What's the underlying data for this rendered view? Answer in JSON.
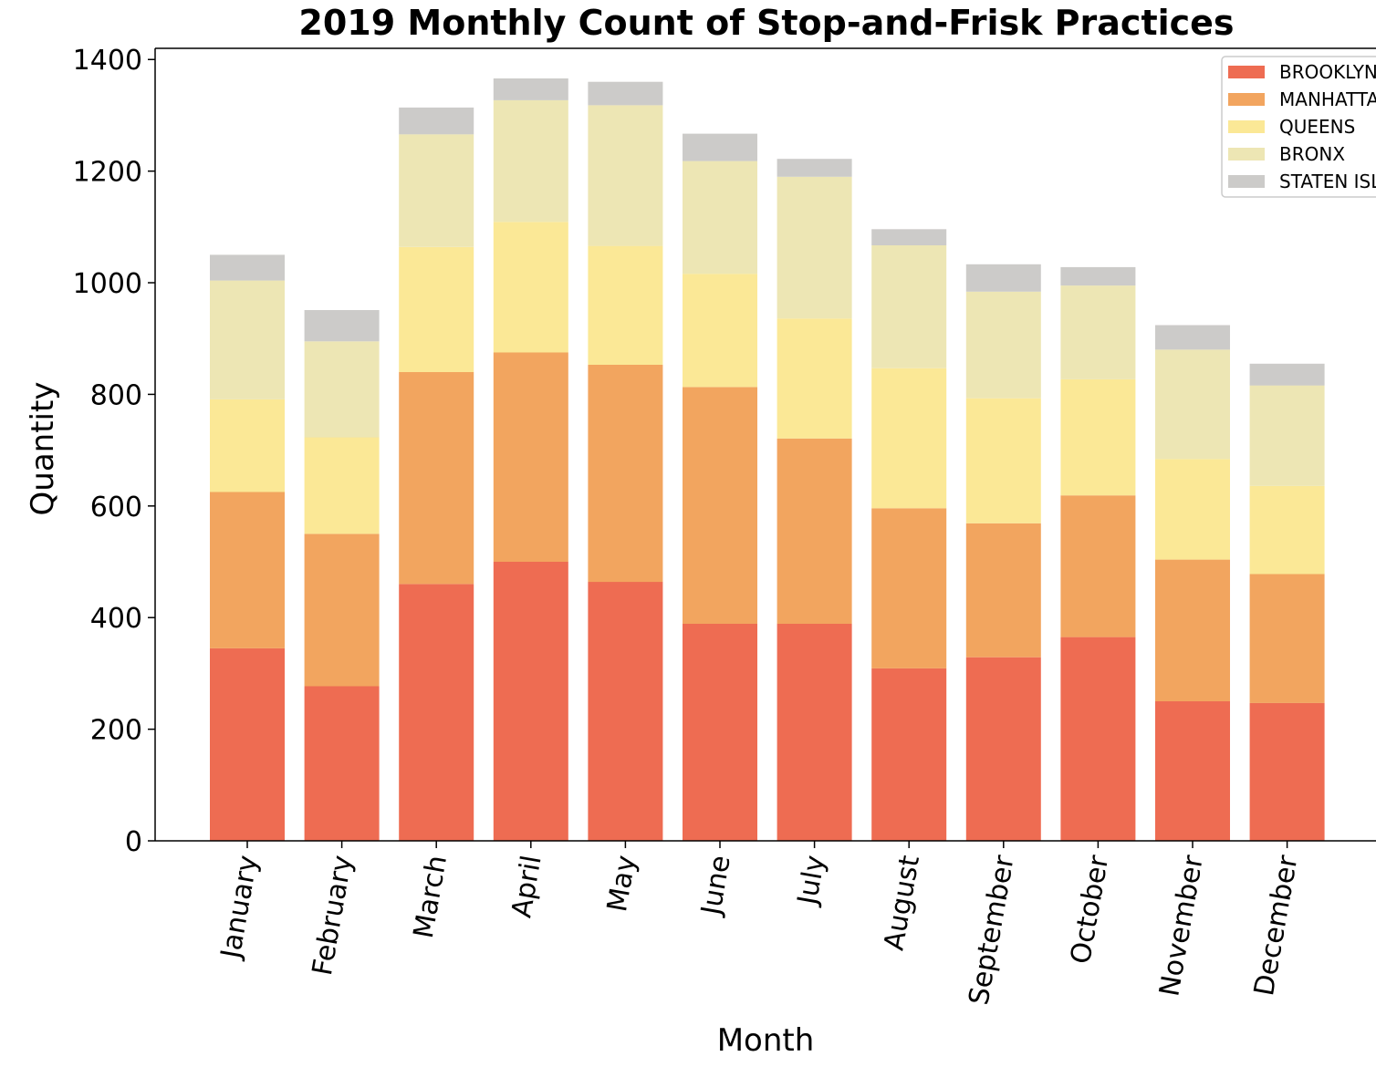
{
  "chart_data": {
    "type": "bar",
    "stacked": true,
    "title": "2019 Monthly Count of Stop-and-Frisk Practices",
    "xlabel": "Month",
    "ylabel": "Quantity",
    "ylim": [
      0,
      1420
    ],
    "yticks": [
      "0",
      "200",
      "400",
      "600",
      "800",
      "1000",
      "1200",
      "1400"
    ],
    "grid": false,
    "legend_position": "top-right",
    "categories": [
      "January",
      "February",
      "March",
      "April",
      "May",
      "June",
      "July",
      "August",
      "September",
      "October",
      "November",
      "December"
    ],
    "series": [
      {
        "name": "BROOKLYN",
        "color": "#ee6c52",
        "values": [
          345,
          277,
          460,
          500,
          464,
          389,
          389,
          309,
          329,
          365,
          250,
          247
        ]
      },
      {
        "name": "MANHATTAN",
        "color": "#f2a55f",
        "values": [
          280,
          273,
          380,
          375,
          389,
          424,
          332,
          287,
          240,
          254,
          254,
          231
        ]
      },
      {
        "name": "QUEENS",
        "color": "#fbe896",
        "values": [
          166,
          173,
          224,
          234,
          213,
          203,
          215,
          251,
          224,
          208,
          180,
          158
        ]
      },
      {
        "name": "BRONX",
        "color": "#ede6b4",
        "values": [
          213,
          172,
          202,
          218,
          252,
          202,
          254,
          220,
          191,
          168,
          196,
          180
        ]
      },
      {
        "name": "STATEN ISLAND",
        "color": "#cccbc9",
        "values": [
          46,
          56,
          48,
          39,
          42,
          49,
          32,
          29,
          49,
          33,
          44,
          39
        ]
      }
    ]
  }
}
